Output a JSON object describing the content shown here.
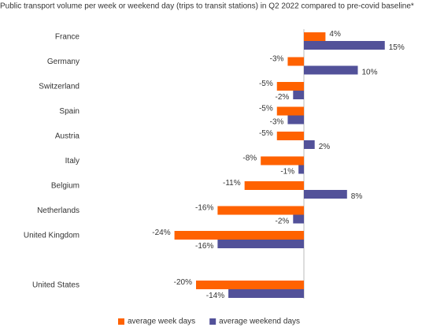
{
  "chart_data": {
    "type": "bar",
    "orientation": "horizontal",
    "title": "Public transport volume per week or weekend day (trips to transit stations) in Q2 2022 compared to pre-covid baseline*",
    "categories": [
      "France",
      "Germany",
      "Switzerland",
      "Spain",
      "Austria",
      "Italy",
      "Belgium",
      "Netherlands",
      "United Kingdom",
      null,
      "United States"
    ],
    "series": [
      {
        "name": "average week days",
        "color": "#ff6200",
        "values": [
          4,
          -3,
          -5,
          -5,
          -5,
          -8,
          -11,
          -16,
          -24,
          null,
          -20
        ],
        "value_labels": [
          "4%",
          "-3%",
          "-5%",
          "-5%",
          "-5%",
          "-8%",
          "-11%",
          "-16%",
          "-24%",
          null,
          "-20%"
        ]
      },
      {
        "name": "average weekend days",
        "color": "#525199",
        "values": [
          15,
          10,
          -2,
          -3,
          2,
          -1,
          8,
          -2,
          -16,
          null,
          -14
        ],
        "value_labels": [
          "15%",
          "10%",
          "-2%",
          "-3%",
          "2%",
          "-1%",
          "8%",
          "-2%",
          "-16%",
          null,
          "-14%"
        ]
      }
    ],
    "legend": "bottom"
  }
}
